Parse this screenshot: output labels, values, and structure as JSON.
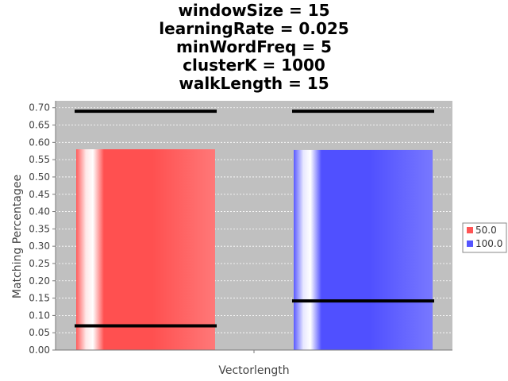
{
  "chart_data": {
    "type": "bar",
    "title_lines": [
      "windowSize = 15",
      "learningRate = 0.025",
      "minWordFreq = 5",
      "clusterK = 1000",
      "walkLength = 15"
    ],
    "xlabel": "Vectorlength",
    "ylabel": "Matching Percentagee",
    "categories": [
      ""
    ],
    "ylim": [
      0,
      0.72
    ],
    "yticks": [
      0.0,
      0.05,
      0.1,
      0.15,
      0.2,
      0.25,
      0.3,
      0.35,
      0.4,
      0.45,
      0.5,
      0.55,
      0.6,
      0.65,
      0.7
    ],
    "ytick_labels": [
      "0.00",
      "0.05",
      "0.10",
      "0.15",
      "0.20",
      "0.25",
      "0.30",
      "0.35",
      "0.40",
      "0.45",
      "0.50",
      "0.55",
      "0.60",
      "0.65",
      "0.70"
    ],
    "series": [
      {
        "name": "50.0",
        "value": 0.58,
        "min": 0.07,
        "max": 0.69,
        "color": "#ff5555"
      },
      {
        "name": "100.0",
        "value": 0.578,
        "min": 0.142,
        "max": 0.69,
        "color": "#5555ff"
      }
    ],
    "grid": true,
    "plot_background": "#c0c0c0",
    "legend_position": "right"
  }
}
